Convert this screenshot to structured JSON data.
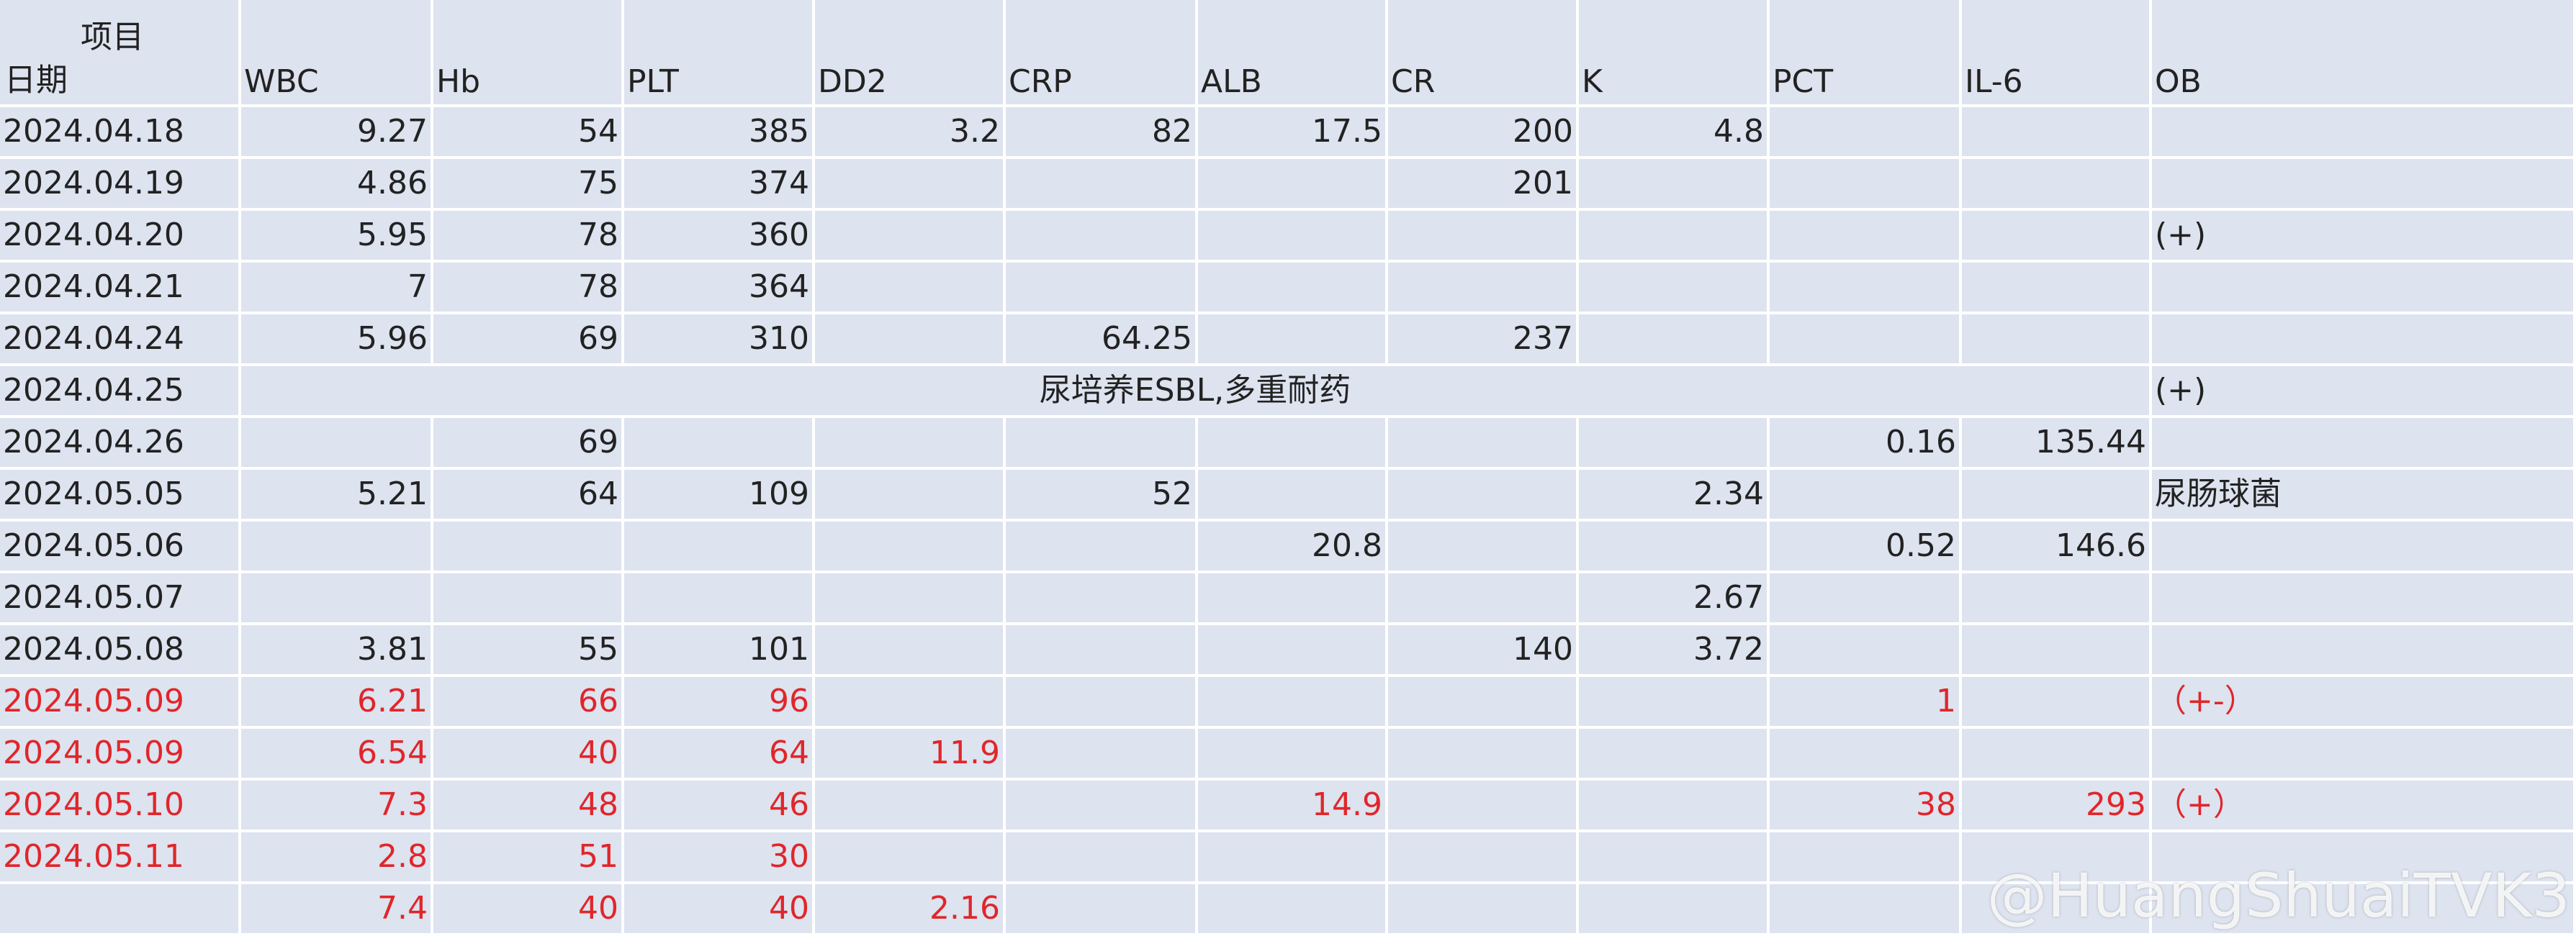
{
  "header": {
    "item": "项目",
    "date": "日期",
    "columns": [
      "WBC",
      "Hb",
      "PLT",
      "DD2",
      "CRP",
      "ALB",
      "CR",
      "K",
      "PCT",
      "IL-6",
      "OB"
    ]
  },
  "rows": [
    {
      "date": "2024.04.18",
      "cells": [
        9.27,
        54,
        385,
        3.2,
        82,
        17.5,
        200,
        4.8,
        null,
        null,
        null
      ]
    },
    {
      "date": "2024.04.19",
      "cells": [
        4.86,
        75,
        374,
        null,
        null,
        null,
        201,
        null,
        null,
        null,
        null
      ]
    },
    {
      "date": "2024.04.20",
      "cells": [
        5.95,
        78,
        360,
        null,
        null,
        null,
        null,
        null,
        null,
        null,
        "(+)"
      ]
    },
    {
      "date": "2024.04.21",
      "cells": [
        7,
        78,
        364,
        null,
        null,
        null,
        null,
        null,
        null,
        null,
        null
      ]
    },
    {
      "date": "2024.04.24",
      "cells": [
        5.96,
        69,
        310,
        null,
        64.25,
        null,
        237,
        null,
        null,
        null,
        null
      ]
    },
    {
      "date": "2024.04.25",
      "note": "尿培养ESBL,多重耐药",
      "cells": [
        null,
        null,
        null,
        null,
        null,
        null,
        null,
        null,
        null,
        null,
        "(+)"
      ]
    },
    {
      "date": "2024.04.26",
      "cells": [
        null,
        69,
        null,
        null,
        null,
        null,
        null,
        null,
        0.16,
        135.44,
        null
      ]
    },
    {
      "date": "2024.05.05",
      "cells": [
        5.21,
        64,
        109,
        null,
        52,
        null,
        null,
        2.34,
        null,
        null,
        "尿肠球菌"
      ]
    },
    {
      "date": "2024.05.06",
      "cells": [
        null,
        null,
        null,
        null,
        null,
        20.8,
        null,
        null,
        0.52,
        146.6,
        null
      ]
    },
    {
      "date": "2024.05.07",
      "cells": [
        null,
        null,
        null,
        null,
        null,
        null,
        null,
        2.67,
        null,
        null,
        null
      ]
    },
    {
      "date": "2024.05.08",
      "cells": [
        3.81,
        55,
        101,
        null,
        null,
        null,
        140,
        3.72,
        null,
        null,
        null
      ]
    },
    {
      "date": "2024.05.09",
      "red": true,
      "cells": [
        6.21,
        66,
        96,
        null,
        null,
        null,
        null,
        null,
        1,
        null,
        "（+-）"
      ]
    },
    {
      "date": "2024.05.09",
      "red": true,
      "cells": [
        6.54,
        40,
        64,
        11.9,
        null,
        null,
        null,
        null,
        null,
        null,
        null
      ]
    },
    {
      "date": "2024.05.10",
      "red": true,
      "cells": [
        7.3,
        48,
        46,
        null,
        null,
        14.9,
        null,
        null,
        38,
        293,
        "（+）"
      ]
    },
    {
      "date": "2024.05.11",
      "red": true,
      "cells": [
        2.8,
        51,
        30,
        null,
        null,
        null,
        null,
        null,
        null,
        null,
        null
      ]
    },
    {
      "date": null,
      "red": true,
      "cells": [
        7.4,
        40,
        40,
        2.16,
        null,
        null,
        null,
        null,
        null,
        null,
        null
      ]
    }
  ],
  "watermark": "@HuangShuaiTVK3"
}
